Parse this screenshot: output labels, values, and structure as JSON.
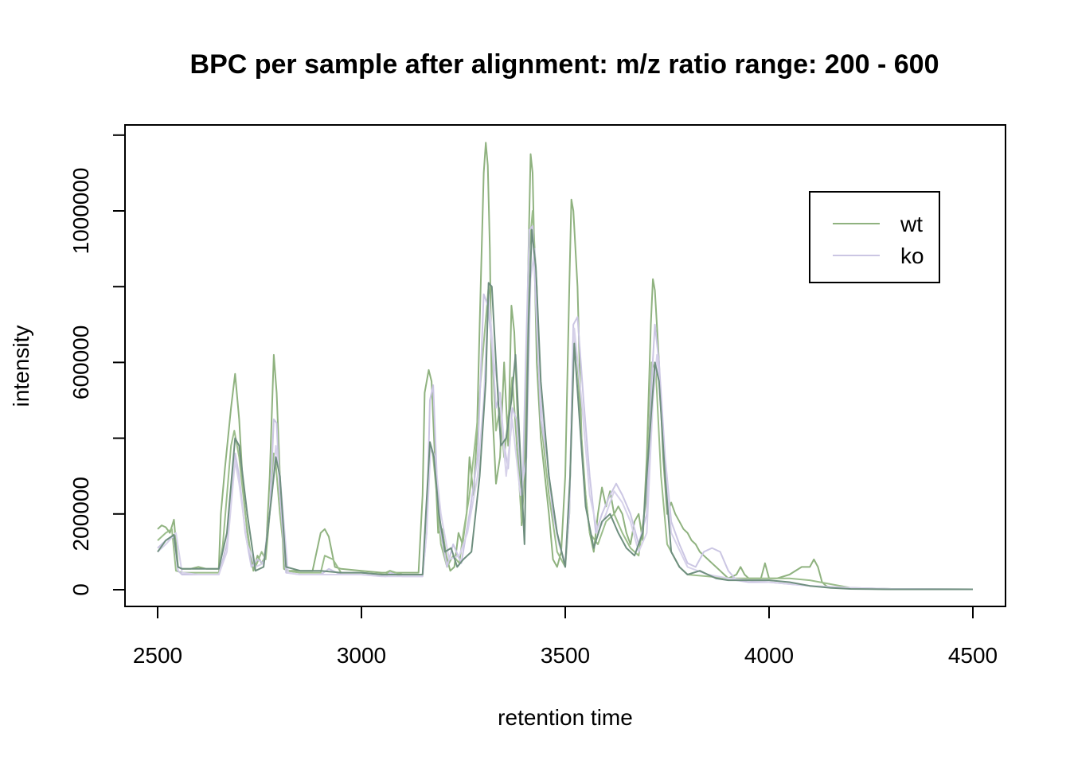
{
  "chart_data": {
    "type": "line",
    "title": "BPC per sample after alignment: m/z ratio range: 200 - 600",
    "xlabel": "retention time",
    "ylabel": "intensity",
    "xlim": [
      2500,
      4500
    ],
    "ylim": [
      0,
      1200000
    ],
    "xticks": [
      2500,
      3000,
      3500,
      4000,
      4500
    ],
    "yticks": [
      0,
      200000,
      600000,
      1000000
    ],
    "grid": false,
    "legend_position": "top-right",
    "legend": [
      {
        "name": "wt",
        "color": "#8fb27f"
      },
      {
        "name": "ko",
        "color": "#cbc6e3"
      }
    ],
    "series": [
      {
        "name": "wt",
        "group": "wt",
        "color": "#8fb27f",
        "x": [
          2500,
          2510,
          2520,
          2530,
          2540,
          2550,
          2560,
          2580,
          2600,
          2620,
          2650,
          2655,
          2665,
          2680,
          2690,
          2700,
          2710,
          2720,
          2735,
          2745,
          2755,
          2765,
          2775,
          2785,
          2792,
          2800,
          2810,
          2820,
          2850,
          2880,
          2900,
          2910,
          2920,
          2935,
          2950,
          3000,
          3050,
          3060,
          3070,
          3080,
          3100,
          3140,
          3150,
          3155,
          3165,
          3172,
          3180,
          3188,
          3198,
          3208,
          3218,
          3228,
          3238,
          3248,
          3258,
          3265,
          3275,
          3283,
          3290,
          3300,
          3305,
          3310,
          3315,
          3320,
          3330,
          3340,
          3350,
          3360,
          3368,
          3375,
          3385,
          3393,
          3400,
          3410,
          3415,
          3420,
          3430,
          3440,
          3450,
          3460,
          3470,
          3480,
          3490,
          3500,
          3510,
          3515,
          3520,
          3530,
          3540,
          3550,
          3560,
          3570,
          3580,
          3590,
          3600,
          3610,
          3620,
          3630,
          3640,
          3650,
          3660,
          3670,
          3680,
          3690,
          3700,
          3710,
          3715,
          3720,
          3730,
          3740,
          3750,
          3760,
          3770,
          3780,
          3790,
          3800,
          3810,
          3820,
          3830,
          3840,
          3850,
          3860,
          3870,
          3880,
          3890,
          3900,
          3920,
          3930,
          3940,
          3950,
          3980,
          3990,
          4000,
          4020,
          4050,
          4080,
          4100,
          4110,
          4120,
          4130,
          4140,
          4150,
          4200,
          4250,
          4300,
          4400,
          4500
        ],
        "y": [
          160000,
          170000,
          165000,
          150000,
          185000,
          60000,
          55000,
          55000,
          60000,
          55000,
          55000,
          200000,
          320000,
          480000,
          570000,
          450000,
          260000,
          150000,
          50000,
          90000,
          70000,
          90000,
          300000,
          620000,
          520000,
          300000,
          55000,
          50000,
          50000,
          50000,
          150000,
          160000,
          140000,
          60000,
          55000,
          50000,
          45000,
          45000,
          50000,
          45000,
          45000,
          45000,
          250000,
          520000,
          580000,
          550000,
          350000,
          150000,
          160000,
          90000,
          50000,
          60000,
          150000,
          120000,
          200000,
          350000,
          250000,
          400000,
          700000,
          1100000,
          1180000,
          1120000,
          900000,
          500000,
          280000,
          350000,
          600000,
          380000,
          750000,
          680000,
          400000,
          170000,
          300000,
          900000,
          1150000,
          1100000,
          600000,
          400000,
          300000,
          200000,
          80000,
          60000,
          100000,
          300000,
          800000,
          1030000,
          1000000,
          800000,
          400000,
          250000,
          150000,
          100000,
          200000,
          270000,
          220000,
          260000,
          200000,
          220000,
          200000,
          150000,
          120000,
          180000,
          200000,
          130000,
          350000,
          700000,
          820000,
          790000,
          600000,
          350000,
          200000,
          230000,
          200000,
          180000,
          160000,
          150000,
          130000,
          120000,
          100000,
          90000,
          80000,
          70000,
          60000,
          50000,
          40000,
          30000,
          40000,
          60000,
          40000,
          30000,
          30000,
          70000,
          30000,
          30000,
          40000,
          60000,
          60000,
          80000,
          60000,
          20000,
          10000,
          5000,
          5000,
          2000,
          1000,
          1000,
          1000
        ]
      },
      {
        "name": "wt",
        "group": "wt",
        "color": "#9bbd8b",
        "x": [
          2500,
          2520,
          2535,
          2545,
          2560,
          2600,
          2650,
          2660,
          2680,
          2688,
          2700,
          2715,
          2730,
          2740,
          2755,
          2765,
          2775,
          2785,
          2790,
          2800,
          2815,
          2850,
          2900,
          2910,
          2930,
          2950,
          3000,
          3060,
          3070,
          3100,
          3150,
          3160,
          3168,
          3175,
          3185,
          3195,
          3210,
          3225,
          3240,
          3250,
          3265,
          3285,
          3300,
          3312,
          3320,
          3330,
          3340,
          3350,
          3360,
          3370,
          3380,
          3393,
          3400,
          3412,
          3420,
          3430,
          3440,
          3460,
          3480,
          3500,
          3510,
          3520,
          3530,
          3545,
          3560,
          3580,
          3600,
          3620,
          3640,
          3660,
          3680,
          3700,
          3712,
          3722,
          3735,
          3750,
          3780,
          3800,
          3850,
          3900,
          3950,
          4000,
          4050,
          4100,
          4150,
          4200,
          4300,
          4500
        ],
        "y": [
          130000,
          150000,
          160000,
          50000,
          45000,
          45000,
          45000,
          120000,
          380000,
          420000,
          350000,
          200000,
          80000,
          60000,
          100000,
          80000,
          200000,
          360000,
          330000,
          200000,
          50000,
          45000,
          45000,
          90000,
          80000,
          45000,
          45000,
          40000,
          50000,
          40000,
          40000,
          200000,
          380000,
          360000,
          250000,
          120000,
          60000,
          90000,
          70000,
          150000,
          250000,
          450000,
          650000,
          800000,
          650000,
          420000,
          480000,
          350000,
          450000,
          560000,
          400000,
          180000,
          400000,
          900000,
          1000000,
          800000,
          450000,
          250000,
          100000,
          60000,
          200000,
          680000,
          600000,
          300000,
          150000,
          120000,
          180000,
          200000,
          150000,
          110000,
          90000,
          250000,
          600000,
          580000,
          300000,
          120000,
          60000,
          40000,
          35000,
          30000,
          30000,
          30000,
          30000,
          25000,
          15000,
          5000,
          2000,
          1000
        ]
      },
      {
        "name": "ko",
        "group": "ko",
        "color": "#cbc6e3",
        "x": [
          2500,
          2520,
          2540,
          2550,
          2560,
          2600,
          2650,
          2670,
          2690,
          2700,
          2715,
          2730,
          2745,
          2760,
          2775,
          2785,
          2792,
          2800,
          2815,
          2850,
          2900,
          2920,
          2950,
          3000,
          3060,
          3070,
          3100,
          3150,
          3160,
          3168,
          3176,
          3185,
          3195,
          3210,
          3225,
          3245,
          3265,
          3285,
          3300,
          3310,
          3320,
          3330,
          3340,
          3350,
          3360,
          3370,
          3380,
          3395,
          3403,
          3412,
          3420,
          3430,
          3440,
          3455,
          3470,
          3485,
          3500,
          3510,
          3520,
          3530,
          3545,
          3560,
          3575,
          3590,
          3610,
          3625,
          3640,
          3660,
          3680,
          3700,
          3712,
          3720,
          3730,
          3745,
          3760,
          3780,
          3800,
          3820,
          3840,
          3860,
          3880,
          3900,
          3920,
          3950,
          4000,
          4050,
          4100,
          4150,
          4200,
          4300,
          4500
        ],
        "y": [
          110000,
          130000,
          140000,
          50000,
          40000,
          40000,
          40000,
          120000,
          360000,
          300000,
          150000,
          60000,
          80000,
          70000,
          200000,
          450000,
          440000,
          250000,
          45000,
          40000,
          40000,
          55000,
          40000,
          40000,
          35000,
          45000,
          35000,
          35000,
          150000,
          500000,
          540000,
          300000,
          150000,
          60000,
          120000,
          70000,
          200000,
          350000,
          780000,
          750000,
          650000,
          480000,
          520000,
          380000,
          320000,
          480000,
          450000,
          250000,
          600000,
          950000,
          960000,
          700000,
          450000,
          350000,
          200000,
          120000,
          70000,
          200000,
          700000,
          720000,
          500000,
          300000,
          150000,
          200000,
          250000,
          280000,
          250000,
          200000,
          120000,
          200000,
          550000,
          700000,
          600000,
          350000,
          180000,
          120000,
          70000,
          60000,
          100000,
          110000,
          100000,
          50000,
          25000,
          20000,
          20000,
          15000,
          10000,
          8000,
          5000,
          2000,
          1000
        ]
      },
      {
        "name": "ko",
        "group": "ko",
        "color": "#d7d2ea",
        "x": [
          2500,
          2520,
          2545,
          2560,
          2600,
          2650,
          2670,
          2690,
          2700,
          2720,
          2740,
          2760,
          2780,
          2790,
          2800,
          2820,
          2850,
          2900,
          2950,
          3000,
          3050,
          3100,
          3150,
          3160,
          3170,
          3180,
          3195,
          3215,
          3240,
          3260,
          3285,
          3300,
          3312,
          3325,
          3340,
          3355,
          3370,
          3390,
          3405,
          3415,
          3425,
          3440,
          3460,
          3480,
          3500,
          3512,
          3522,
          3540,
          3560,
          3580,
          3600,
          3620,
          3640,
          3660,
          3680,
          3700,
          3715,
          3725,
          3740,
          3760,
          3800,
          3850,
          3900,
          3950,
          4000,
          4050,
          4100,
          4200,
          4300,
          4500
        ],
        "y": [
          100000,
          120000,
          150000,
          45000,
          40000,
          40000,
          100000,
          340000,
          280000,
          120000,
          60000,
          70000,
          250000,
          380000,
          300000,
          45000,
          40000,
          40000,
          40000,
          40000,
          35000,
          35000,
          35000,
          150000,
          380000,
          350000,
          200000,
          80000,
          90000,
          150000,
          300000,
          500000,
          780000,
          600000,
          500000,
          300000,
          450000,
          250000,
          350000,
          820000,
          900000,
          500000,
          300000,
          150000,
          60000,
          300000,
          690000,
          500000,
          250000,
          150000,
          200000,
          260000,
          230000,
          180000,
          100000,
          150000,
          500000,
          620000,
          400000,
          150000,
          60000,
          40000,
          30000,
          25000,
          20000,
          15000,
          10000,
          5000,
          2000,
          1000
        ]
      },
      {
        "name": "wt",
        "group": "wt",
        "color": "#6f8f7f",
        "x": [
          2500,
          2520,
          2540,
          2550,
          2560,
          2600,
          2650,
          2670,
          2690,
          2700,
          2720,
          2740,
          2760,
          2780,
          2790,
          2800,
          2815,
          2850,
          2900,
          2950,
          3000,
          3050,
          3100,
          3150,
          3158,
          3168,
          3178,
          3190,
          3205,
          3220,
          3235,
          3250,
          3270,
          3290,
          3305,
          3312,
          3320,
          3330,
          3342,
          3355,
          3368,
          3378,
          3390,
          3400,
          3410,
          3418,
          3428,
          3440,
          3460,
          3480,
          3500,
          3512,
          3522,
          3535,
          3550,
          3570,
          3590,
          3610,
          3630,
          3650,
          3670,
          3690,
          3710,
          3720,
          3730,
          3745,
          3760,
          3780,
          3800,
          3830,
          3850,
          3870,
          3900,
          3950,
          4000,
          4050,
          4100,
          4150,
          4200,
          4300,
          4500
        ],
        "y": [
          100000,
          130000,
          145000,
          60000,
          55000,
          55000,
          55000,
          150000,
          400000,
          380000,
          200000,
          50000,
          60000,
          250000,
          350000,
          300000,
          60000,
          50000,
          50000,
          45000,
          45000,
          40000,
          40000,
          40000,
          200000,
          390000,
          350000,
          200000,
          100000,
          110000,
          60000,
          80000,
          100000,
          300000,
          550000,
          810000,
          800000,
          600000,
          380000,
          400000,
          500000,
          620000,
          350000,
          120000,
          700000,
          950000,
          850000,
          550000,
          300000,
          150000,
          60000,
          300000,
          650000,
          450000,
          220000,
          110000,
          180000,
          200000,
          150000,
          110000,
          90000,
          150000,
          450000,
          600000,
          550000,
          300000,
          100000,
          60000,
          40000,
          50000,
          40000,
          30000,
          25000,
          25000,
          25000,
          20000,
          10000,
          5000,
          2000,
          1000,
          1000
        ]
      }
    ]
  }
}
